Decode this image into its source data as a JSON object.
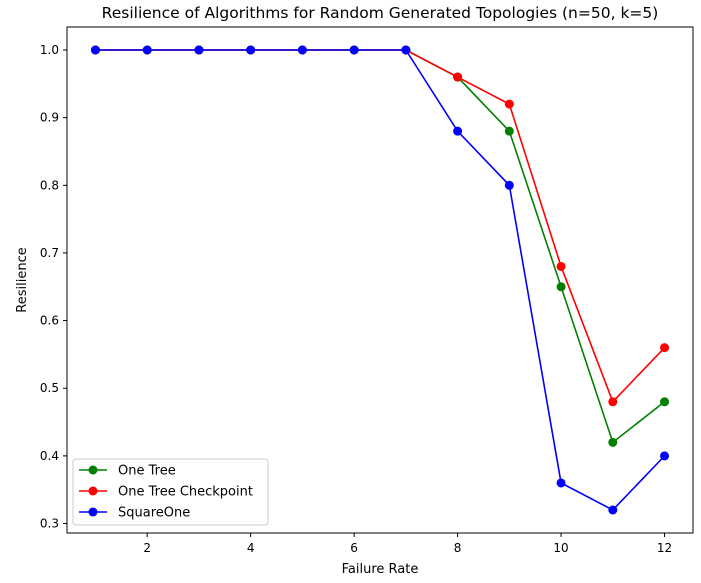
{
  "chart_data": {
    "type": "line",
    "title": "Resilience of Algorithms for Random Generated Topologies (n=50, k=5)",
    "xlabel": "Failure Rate",
    "ylabel": "Resilience",
    "x": [
      1,
      2,
      3,
      4,
      5,
      6,
      7,
      8,
      9,
      10,
      11,
      12
    ],
    "xlim": [
      0.45,
      12.55
    ],
    "ylim": [
      0.286,
      1.034
    ],
    "xticks": [
      2,
      4,
      6,
      8,
      10,
      12
    ],
    "yticks": [
      0.3,
      0.4,
      0.5,
      0.6,
      0.7,
      0.8,
      0.9,
      1.0
    ],
    "xtick_labels": [
      "2",
      "4",
      "6",
      "8",
      "10",
      "12"
    ],
    "ytick_labels": [
      "0.3",
      "0.4",
      "0.5",
      "0.6",
      "0.7",
      "0.8",
      "0.9",
      "1.0"
    ],
    "grid": false,
    "legend_position": "lower-left",
    "series": [
      {
        "name": "One Tree",
        "color": "#008000",
        "marker": "circle",
        "values": [
          1.0,
          1.0,
          1.0,
          1.0,
          1.0,
          1.0,
          1.0,
          0.96,
          0.88,
          0.65,
          0.42,
          0.48
        ]
      },
      {
        "name": "One Tree Checkpoint",
        "color": "#ff0000",
        "marker": "circle",
        "values": [
          1.0,
          1.0,
          1.0,
          1.0,
          1.0,
          1.0,
          1.0,
          0.96,
          0.92,
          0.68,
          0.48,
          0.56
        ]
      },
      {
        "name": "SquareOne",
        "color": "#0000ff",
        "marker": "circle",
        "values": [
          1.0,
          1.0,
          1.0,
          1.0,
          1.0,
          1.0,
          1.0,
          0.88,
          0.8,
          0.36,
          0.32,
          0.4
        ]
      }
    ]
  }
}
